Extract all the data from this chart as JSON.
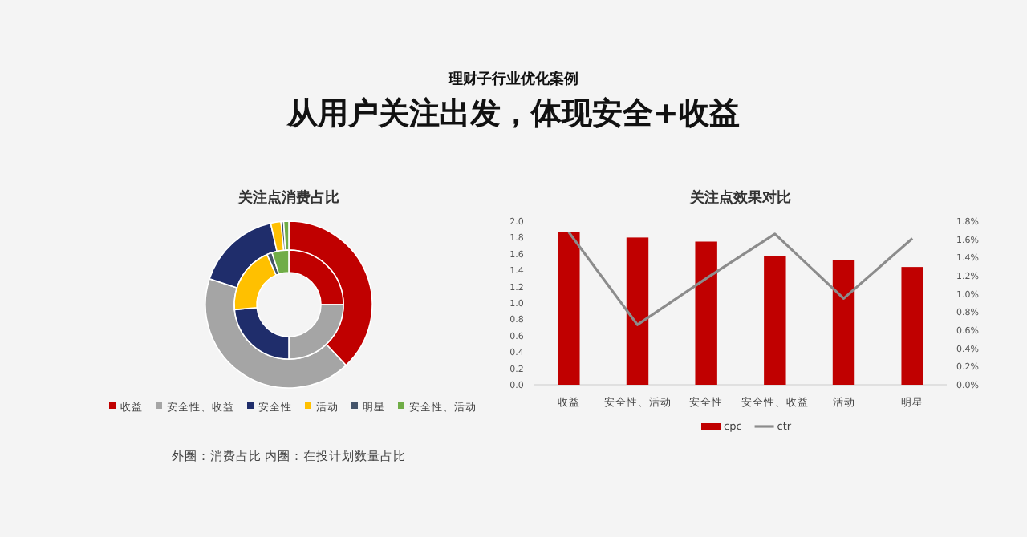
{
  "chart_data": [
    {
      "type": "other",
      "title": "从用户关注出发，体现安全+收益",
      "subtitle": "理财子行业优化案例"
    },
    {
      "type": "donut",
      "title": "关注点消费占比",
      "categories": [
        "收益",
        "安全性、收益",
        "安全性",
        "活动",
        "明星",
        "安全性、活动"
      ],
      "colors": [
        "#c00000",
        "#a5a5a5",
        "#1f2d6b",
        "#ffc000",
        "#44546a",
        "#70ad47"
      ],
      "series": [
        {
          "values": [
            38,
            42,
            16.5,
            2,
            0.5,
            1
          ]
        },
        {
          "values": [
            25,
            25,
            23.5,
            20,
            1.5,
            5
          ]
        }
      ],
      "legend": "bottom",
      "annotations": [
        "外圈：消费占比   内圈：在投计划数量占比"
      ]
    },
    {
      "type": "bar",
      "title": "关注点效果对比",
      "categories": [
        "收益",
        "安全性、活动",
        "安全性",
        "安全性、收益",
        "活动",
        "明星"
      ],
      "series": [
        {
          "name": "cpc",
          "type": "bar",
          "color": "#c00000",
          "values": [
            1.87,
            1.8,
            1.75,
            1.57,
            1.52,
            1.44
          ]
        },
        {
          "name": "ctr",
          "type": "line",
          "axis": "y2",
          "color": "#8c8c8c",
          "values": [
            1.68,
            0.66,
            1.17,
            1.66,
            0.95,
            1.61
          ]
        }
      ],
      "ylim": [
        0,
        2
      ],
      "yticks": [
        {
          "value": 0,
          "label": "0.0"
        },
        {
          "value": 0.2,
          "label": "0.2"
        },
        {
          "value": 0.4,
          "label": "0.4"
        },
        {
          "value": 0.6,
          "label": "0.6"
        },
        {
          "value": 0.8,
          "label": "0.8"
        },
        {
          "value": 1,
          "label": "1.0"
        },
        {
          "value": 1.2,
          "label": "1.2"
        },
        {
          "value": 1.4,
          "label": "1.4"
        },
        {
          "value": 1.6,
          "label": "1.6"
        },
        {
          "value": 1.8,
          "label": "1.8"
        },
        {
          "value": 2,
          "label": "2.0"
        }
      ],
      "y2lim": [
        0,
        1.8
      ],
      "y2ticks": [
        {
          "value": 0,
          "label": "0.0%"
        },
        {
          "value": 0.2,
          "label": "0.2%"
        },
        {
          "value": 0.4,
          "label": "0.4%"
        },
        {
          "value": 0.6,
          "label": "0.6%"
        },
        {
          "value": 0.8,
          "label": "0.8%"
        },
        {
          "value": 1,
          "label": "1.0%"
        },
        {
          "value": 1.2,
          "label": "1.2%"
        },
        {
          "value": 1.4,
          "label": "1.4%"
        },
        {
          "value": 1.6,
          "label": "1.6%"
        },
        {
          "value": 1.8,
          "label": "1.8%"
        }
      ],
      "legend": "bottom"
    }
  ]
}
